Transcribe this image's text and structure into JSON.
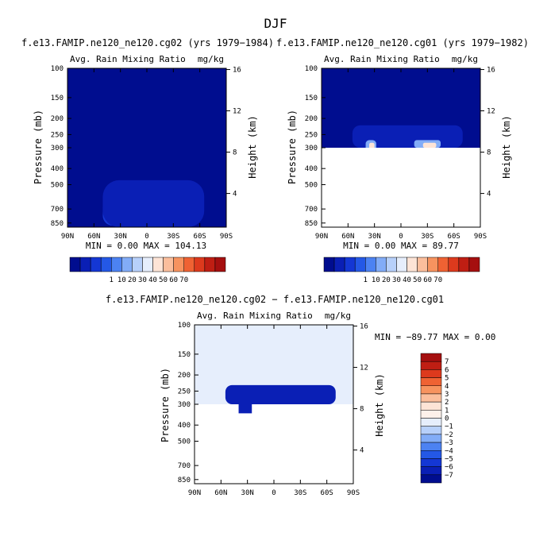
{
  "figure_title": "DJF",
  "colors": {
    "background": "#ffffff",
    "field_max_red": "#a50f0f",
    "field_min_blue": "#000d8f"
  },
  "chart_data": [
    {
      "type": "heatmap",
      "title": "f.e13.FAMIP.ne120_ne120.cg02 (yrs 1979−1984)",
      "left_string": "Avg. Rain Mixing Ratio",
      "right_string": "mg/kg",
      "xlabel": "",
      "ylabel": "Pressure (mb)",
      "y2label": "Height (km)",
      "x_ticks": [
        "90N",
        "60N",
        "30N",
        "0",
        "30S",
        "60S",
        "90S"
      ],
      "x_tick_values": [
        90,
        60,
        30,
        0,
        -30,
        -60,
        -90
      ],
      "xlim": [
        90,
        -90
      ],
      "y_ticks": [
        "100",
        "150",
        "200",
        "250",
        "300",
        "400",
        "500",
        "700",
        "850"
      ],
      "y_tick_values": [
        100,
        150,
        200,
        250,
        300,
        400,
        500,
        700,
        850
      ],
      "ylim": [
        100,
        900
      ],
      "y_scale": "log",
      "y2_ticks": [
        "16",
        "12",
        "8",
        "4"
      ],
      "y2_tick_values": [
        16,
        12,
        8,
        4
      ],
      "stats_text": "MIN =   0.00  MAX = 104.13",
      "min": 0.0,
      "max": 104.13,
      "legend_placement": "bottom",
      "levels": [
        "1",
        "10",
        "20",
        "30",
        "40",
        "50",
        "60",
        "70"
      ],
      "level_colors": [
        "#000d8f",
        "#0a1fb5",
        "#1437d4",
        "#2458e6",
        "#4c82f2",
        "#82acf7",
        "#b7d0fa",
        "#e6eefc",
        "#fde4d6",
        "#fbbe9c",
        "#f7935f",
        "#ef6233",
        "#dd3a1d",
        "#bf1e13",
        "#a50f0f"
      ],
      "cells": [
        {
          "lat": [
            50,
            18
          ],
          "p": [
            600,
            880
          ],
          "value": 10
        },
        {
          "lat": [
            40,
            22
          ],
          "p": [
            650,
            880
          ],
          "value": 40
        },
        {
          "lat": [
            35,
            25
          ],
          "p": [
            700,
            850
          ],
          "value": 70
        },
        {
          "lat": [
            15,
            -55
          ],
          "p": [
            530,
            880
          ],
          "value": 10
        },
        {
          "lat": [
            10,
            -50
          ],
          "p": [
            570,
            870
          ],
          "value": 40
        },
        {
          "lat": [
            2,
            -45
          ],
          "p": [
            620,
            850
          ],
          "value": 70
        },
        {
          "lat": [
            50,
            -65
          ],
          "p": [
            470,
            900
          ],
          "value": 1
        }
      ]
    },
    {
      "type": "heatmap",
      "title": "f.e13.FAMIP.ne120_ne120.cg01 (yrs 1979−1982)",
      "left_string": "Avg. Rain Mixing Ratio",
      "right_string": "mg/kg",
      "xlabel": "",
      "ylabel": "Pressure (mb)",
      "y2label": "Height (km)",
      "x_ticks": [
        "90N",
        "60N",
        "30N",
        "0",
        "30S",
        "60S",
        "90S"
      ],
      "x_tick_values": [
        90,
        60,
        30,
        0,
        -30,
        -60,
        -90
      ],
      "xlim": [
        90,
        -90
      ],
      "y_ticks": [
        "100",
        "150",
        "200",
        "250",
        "300",
        "400",
        "500",
        "700",
        "850"
      ],
      "y_tick_values": [
        100,
        150,
        200,
        250,
        300,
        400,
        500,
        700,
        850
      ],
      "ylim": [
        100,
        900
      ],
      "y_scale": "log",
      "y2_ticks": [
        "16",
        "12",
        "8",
        "4"
      ],
      "y2_tick_values": [
        16,
        12,
        8,
        4
      ],
      "stats_text": "MIN =   0.00  MAX =  89.77",
      "min": 0.0,
      "max": 89.77,
      "legend_placement": "bottom",
      "levels": [
        "1",
        "10",
        "20",
        "30",
        "40",
        "50",
        "60",
        "70"
      ],
      "level_colors": [
        "#000d8f",
        "#0a1fb5",
        "#1437d4",
        "#2458e6",
        "#4c82f2",
        "#82acf7",
        "#b7d0fa",
        "#e6eefc",
        "#fde4d6",
        "#fbbe9c",
        "#f7935f",
        "#ef6233",
        "#dd3a1d",
        "#bf1e13",
        "#a50f0f"
      ],
      "missing_below_hpa": 300,
      "cells": [
        {
          "lat": [
            55,
            -70
          ],
          "p": [
            220,
            300
          ],
          "value": 1
        },
        {
          "lat": [
            40,
            28
          ],
          "p": [
            270,
            340
          ],
          "value": 40
        },
        {
          "lat": [
            36,
            30
          ],
          "p": [
            280,
            340
          ],
          "value": 70
        },
        {
          "lat": [
            -15,
            -45
          ],
          "p": [
            270,
            300
          ],
          "value": 40
        },
        {
          "lat": [
            -25,
            -40
          ],
          "p": [
            280,
            300
          ],
          "value": 70
        }
      ]
    },
    {
      "type": "heatmap",
      "title": "f.e13.FAMIP.ne120_ne120.cg02 − f.e13.FAMIP.ne120_ne120.cg01",
      "left_string": "Avg. Rain Mixing Ratio",
      "right_string": "mg/kg",
      "xlabel": "",
      "ylabel": "Pressure (mb)",
      "y2label": "Height (km)",
      "x_ticks": [
        "90N",
        "60N",
        "30N",
        "0",
        "30S",
        "60S",
        "90S"
      ],
      "x_tick_values": [
        90,
        60,
        30,
        0,
        -30,
        -60,
        -90
      ],
      "xlim": [
        90,
        -90
      ],
      "y_ticks": [
        "100",
        "150",
        "200",
        "250",
        "300",
        "400",
        "500",
        "700",
        "850"
      ],
      "y_tick_values": [
        100,
        150,
        200,
        250,
        300,
        400,
        500,
        700,
        850
      ],
      "ylim": [
        100,
        900
      ],
      "y_scale": "log",
      "y2_ticks": [
        "16",
        "12",
        "8",
        "4"
      ],
      "y2_tick_values": [
        16,
        12,
        8,
        4
      ],
      "stats_text": "MIN = −89.77  MAX =    0.00",
      "min": -89.77,
      "max": 0.0,
      "legend_placement": "right",
      "levels": [
        "7",
        "6",
        "5",
        "4",
        "3",
        "2",
        "1",
        "0",
        "−1",
        "−2",
        "−3",
        "−4",
        "−5",
        "−6",
        "−7"
      ],
      "level_colors": [
        "#a50f0f",
        "#bf1e13",
        "#dd3a1d",
        "#ef6233",
        "#f7935f",
        "#fbbe9c",
        "#fde4d6",
        "#fdf1ea",
        "#e6eefc",
        "#b7d0fa",
        "#82acf7",
        "#4c82f2",
        "#2458e6",
        "#1437d4",
        "#0a1fb5",
        "#000d8f"
      ],
      "background_value": -0.5,
      "missing_below_hpa": 300,
      "cells": [
        {
          "lat": [
            55,
            -70
          ],
          "p": [
            230,
            300
          ],
          "value": -7
        },
        {
          "lat": [
            40,
            25
          ],
          "p": [
            300,
            340
          ],
          "value": -7
        }
      ]
    }
  ]
}
